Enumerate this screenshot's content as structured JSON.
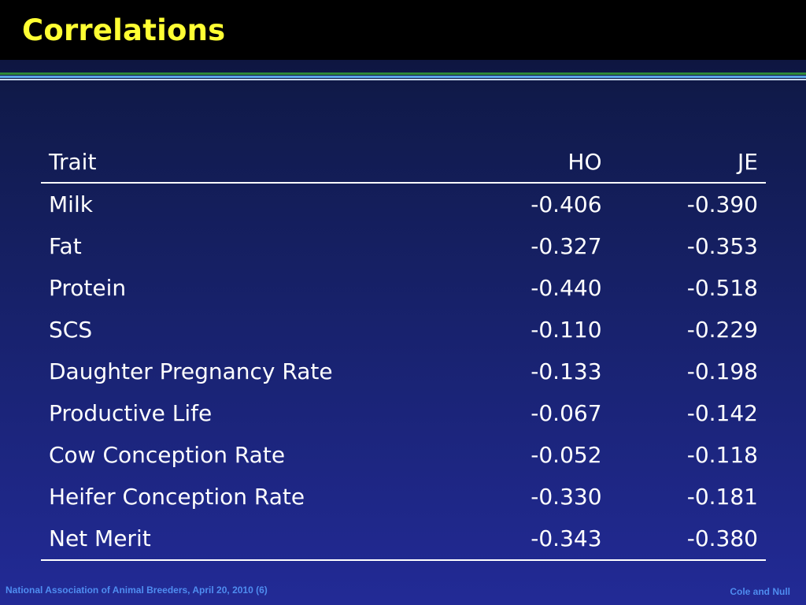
{
  "slide": {
    "title": "Correlations"
  },
  "table": {
    "headers": [
      "Trait",
      "HO",
      "JE"
    ],
    "rows": [
      [
        "Milk",
        "-0.406",
        "-0.390"
      ],
      [
        "Fat",
        "-0.327",
        "-0.353"
      ],
      [
        "Protein",
        "-0.440",
        "-0.518"
      ],
      [
        "SCS",
        "-0.110",
        "-0.229"
      ],
      [
        "Daughter Pregnancy Rate",
        "-0.133",
        "-0.198"
      ],
      [
        "Productive Life",
        "-0.067",
        "-0.142"
      ],
      [
        "Cow Conception Rate",
        "-0.052",
        "-0.118"
      ],
      [
        "Heifer Conception Rate",
        "-0.330",
        "-0.181"
      ],
      [
        "Net Merit",
        "-0.343",
        "-0.380"
      ]
    ]
  },
  "footer": {
    "left": "National Association of Animal Breeders, April 20, 2010 (6)",
    "right": "Cole and Null"
  },
  "colors": {
    "title": "#ffff33",
    "text": "#ffffff",
    "footer": "#4f8df0",
    "background_top": "#0a0d2e",
    "background_bottom": "#222a96"
  }
}
